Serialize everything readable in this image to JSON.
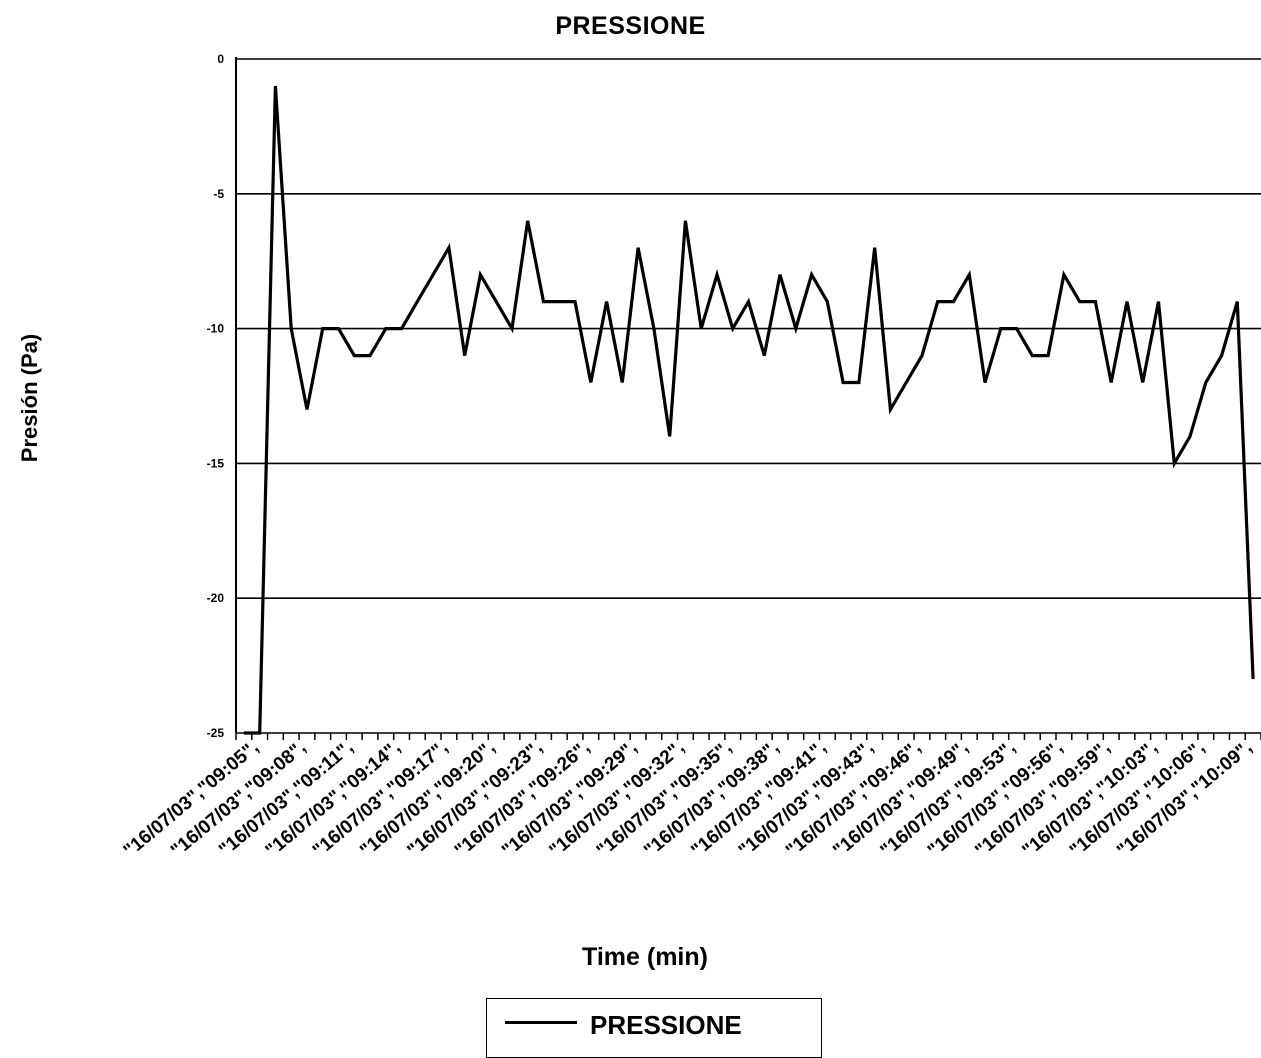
{
  "chart_data": {
    "type": "line",
    "title": "PRESSIONE",
    "xlabel": "Time (min)",
    "ylabel": "Presión (Pa)",
    "ylim": [
      -25,
      0
    ],
    "yticks": [
      0,
      -5,
      -10,
      -15,
      -20,
      -25
    ],
    "grid": "horizontal",
    "legend_position": "bottom",
    "x_tick_labels": [
      "\"16/07/03\",\"09:05\",",
      "\"16/07/03\",\"09:08\",",
      "\"16/07/03\",\"09:11\",",
      "\"16/07/03\",\"09:14\",",
      "\"16/07/03\",\"09:17\",",
      "\"16/07/03\",\"09:20\",",
      "\"16/07/03\",\"09:23\",",
      "\"16/07/03\",\"09:26\",",
      "\"16/07/03\",\"09:29\",",
      "\"16/07/03\",\"09:32\",",
      "\"16/07/03\",\"09:35\",",
      "\"16/07/03\",\"09:38\",",
      "\"16/07/03\",\"09:41\",",
      "\"16/07/03\",\"09:43\",",
      "\"16/07/03\",\"09:46\",",
      "\"16/07/03\",\"09:49\",",
      "\"16/07/03\",\"09:53\",",
      "\"16/07/03\",\"09:56\",",
      "\"16/07/03\",\"09:59\",",
      "\"16/07/03\",\"10:03\",",
      "\"16/07/03\",\"10:06\",",
      "\"16/07/03\",\"10:09\","
    ],
    "series": [
      {
        "name": "PRESSIONE",
        "color": "#000000",
        "values": [
          -25,
          -25,
          -1,
          -10,
          -13,
          -10,
          -10,
          -11,
          -11,
          -10,
          -10,
          -9,
          -8,
          -7,
          -11,
          -8,
          -9,
          -10,
          -6,
          -9,
          -9,
          -9,
          -12,
          -9,
          -12,
          -7,
          -10,
          -14,
          -6,
          -10,
          -8,
          -10,
          -9,
          -11,
          -8,
          -10,
          -8,
          -9,
          -12,
          -12,
          -7,
          -13,
          -12,
          -11,
          -9,
          -9,
          -8,
          -12,
          -10,
          -10,
          -11,
          -11,
          -8,
          -9,
          -9,
          -12,
          -9,
          -12,
          -9,
          -15,
          -14,
          -12,
          -11,
          -9,
          -23
        ]
      }
    ]
  },
  "legend": {
    "label": "PRESSIONE"
  }
}
